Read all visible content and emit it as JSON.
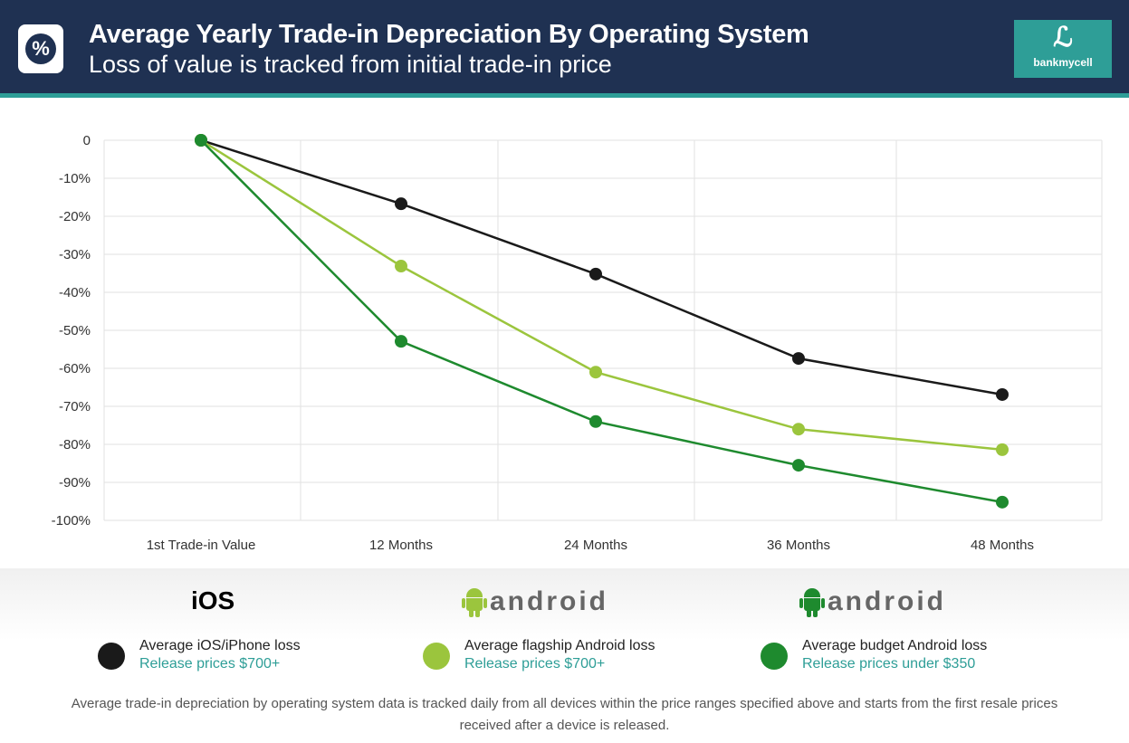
{
  "header": {
    "title": "Average Yearly Trade-in Depreciation By Operating System",
    "subtitle": "Loss of value is tracked from initial trade-in price",
    "logo_text": "bankmycell",
    "icon": "percent-icon"
  },
  "chart_data": {
    "type": "line",
    "categories": [
      "1st Trade-in Value",
      "12 Months",
      "24 Months",
      "36 Months",
      "48 Months"
    ],
    "yticks": [
      "0",
      "-10%",
      "-20%",
      "-30%",
      "-40%",
      "-50%",
      "-60%",
      "-70%",
      "-80%",
      "-90%",
      "-100%"
    ],
    "ylim": [
      -100,
      0
    ],
    "grid": true,
    "series": [
      {
        "name": "Average iOS/iPhone loss",
        "color": "#1a1a1a",
        "values": [
          0,
          -16.7,
          -35.2,
          -57.4,
          -66.9
        ]
      },
      {
        "name": "Average flagship Android loss",
        "color": "#9bc53d",
        "values": [
          0,
          -33.1,
          -61,
          -76,
          -81.4
        ]
      },
      {
        "name": "Average budget Android loss",
        "color": "#1e8a2e",
        "values": [
          0,
          -52.9,
          -74,
          -85.5,
          -95.2
        ]
      }
    ]
  },
  "legend": {
    "os": [
      {
        "label": "iOS",
        "icon": "apple-icon"
      },
      {
        "label": "android",
        "icon": "android-icon",
        "color": "#9bc53d"
      },
      {
        "label": "android",
        "icon": "android-icon",
        "color": "#1e8a2e"
      }
    ],
    "items": [
      {
        "title": "Average iOS/iPhone loss",
        "sub": "Release prices $700+",
        "color": "#1a1a1a"
      },
      {
        "title": "Average flagship Android loss",
        "sub": "Release prices $700+",
        "color": "#9bc53d"
      },
      {
        "title": "Average budget Android loss",
        "sub": "Release prices under $350",
        "color": "#1e8a2e"
      }
    ]
  },
  "footnote": "Average trade-in depreciation by operating system data is tracked daily from all devices within the price ranges specified above and starts from the first resale prices received after a device is released."
}
